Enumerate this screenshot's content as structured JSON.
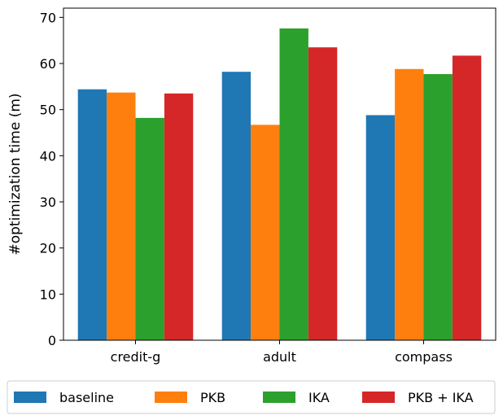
{
  "chart_data": {
    "type": "bar",
    "ylabel": "#optimization time (m)",
    "xlabel": "",
    "categories": [
      "credit-g",
      "adult",
      "compass"
    ],
    "ylim": [
      0,
      72
    ],
    "yticks": [
      0,
      10,
      20,
      30,
      40,
      50,
      60,
      70
    ],
    "grid": false,
    "legend_position": "bottom",
    "series": [
      {
        "name": "baseline",
        "color": "#1f77b4",
        "values": [
          54.4,
          58.2,
          48.8
        ]
      },
      {
        "name": "PKB",
        "color": "#ff7f0e",
        "values": [
          53.7,
          46.7,
          58.8
        ]
      },
      {
        "name": "IKA",
        "color": "#2ca02c",
        "values": [
          48.2,
          67.6,
          57.7
        ]
      },
      {
        "name": "PKB + IKA",
        "color": "#d62728",
        "values": [
          53.5,
          63.5,
          61.7
        ]
      }
    ]
  }
}
